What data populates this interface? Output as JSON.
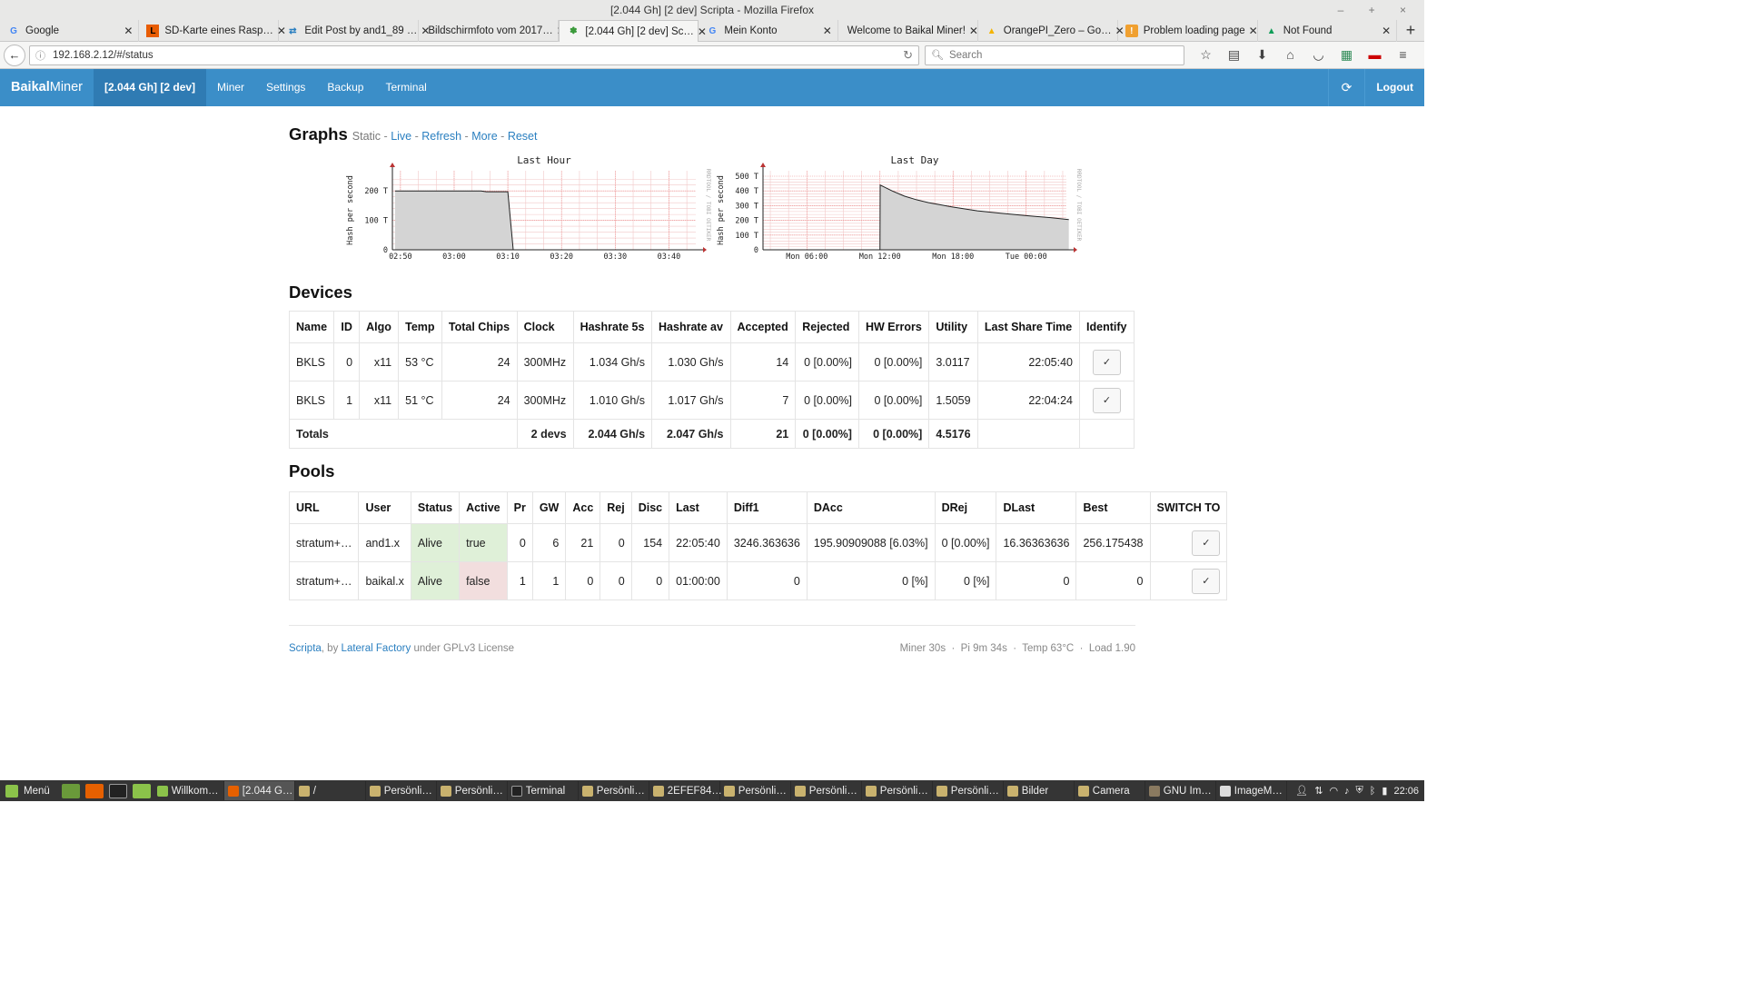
{
  "window": {
    "title": "[2.044 Gh] [2 dev] Scripta - Mozilla Firefox",
    "controls": "– + ×"
  },
  "tabs": [
    {
      "label": "Google",
      "icon": "google-icon",
      "active": false
    },
    {
      "label": "SD-Karte eines Rasp…",
      "icon": "site-l-icon",
      "active": false
    },
    {
      "label": "Edit Post by and1_89 …",
      "icon": "edit-icon",
      "active": false
    },
    {
      "label": "Bildschirmfoto vom 2017…",
      "icon": "",
      "active": false
    },
    {
      "label": "[2.044 Gh] [2 dev] Sc…",
      "icon": "scripta-icon",
      "active": true
    },
    {
      "label": "Mein Konto",
      "icon": "google-icon",
      "active": false
    },
    {
      "label": "Welcome to Baikal Miner!",
      "icon": "",
      "active": false
    },
    {
      "label": "OrangePI_Zero – Go…",
      "icon": "drive-icon",
      "active": false
    },
    {
      "label": "Problem loading page",
      "icon": "warning-icon",
      "active": false
    },
    {
      "label": "Not Found",
      "icon": "drive-icon",
      "active": false
    }
  ],
  "navbar": {
    "url": "192.168.2.12/#/status",
    "search_placeholder": "Search"
  },
  "app": {
    "brand_bold": "Baikal",
    "brand_rest": "Miner",
    "nav": [
      "[2.044 Gh] [2 dev]",
      "Miner",
      "Settings",
      "Backup",
      "Terminal"
    ],
    "logout": "Logout"
  },
  "graphs": {
    "heading": "Graphs",
    "static_label": "Static",
    "links": [
      "Live",
      "Refresh",
      "More",
      "Reset"
    ]
  },
  "chart_data": [
    {
      "type": "area",
      "title": "Last Hour",
      "ylabel": "Hash per second",
      "watermark": "RRDTOOL / TOBI OETIKER",
      "yticks": [
        "0",
        "100 T",
        "200 T"
      ],
      "xticks": [
        "02:50",
        "03:00",
        "03:10",
        "03:20",
        "03:30",
        "03:40"
      ],
      "ylim": [
        0,
        250
      ],
      "x": [
        "02:49",
        "02:50",
        "02:55",
        "03:00",
        "03:05",
        "03:06",
        "03:10",
        "03:11"
      ],
      "values": [
        200,
        200,
        200,
        200,
        200,
        197,
        197,
        0
      ]
    },
    {
      "type": "area",
      "title": "Last Day",
      "ylabel": "Hash per second",
      "watermark": "RRDTOOL / TOBI OETIKER",
      "yticks": [
        "0",
        "100 T",
        "200 T",
        "300 T",
        "400 T",
        "500 T"
      ],
      "xticks": [
        "Mon 06:00",
        "Mon 12:00",
        "Mon 18:00",
        "Tue 00:00"
      ],
      "ylim": [
        0,
        500
      ],
      "x": [
        "Mon 12:00",
        "Mon 12:01",
        "Mon 13:00",
        "Mon 14:00",
        "Mon 15:00",
        "Mon 16:00",
        "Mon 18:00",
        "Mon 20:00",
        "Mon 22:00",
        "Tue 00:00",
        "Tue 02:00",
        "Tue 03:30"
      ],
      "values": [
        0,
        440,
        400,
        365,
        340,
        320,
        290,
        265,
        248,
        232,
        218,
        205
      ]
    }
  ],
  "devices": {
    "heading": "Devices",
    "columns": [
      "Name",
      "ID",
      "Algo",
      "Temp",
      "Total Chips",
      "Clock",
      "Hashrate 5s",
      "Hashrate av",
      "Accepted",
      "Rejected",
      "HW Errors",
      "Utility",
      "Last Share Time",
      "Identify"
    ],
    "rows": [
      [
        "BKLS",
        "0",
        "x11",
        "53 °C",
        "24",
        "300MHz",
        "1.034 Gh/s",
        "1.030 Gh/s",
        "14",
        "0 [0.00%]",
        "0 [0.00%]",
        "3.0117",
        "22:05:40",
        "✓"
      ],
      [
        "BKLS",
        "1",
        "x11",
        "51 °C",
        "24",
        "300MHz",
        "1.010 Gh/s",
        "1.017 Gh/s",
        "7",
        "0 [0.00%]",
        "0 [0.00%]",
        "1.5059",
        "22:04:24",
        "✓"
      ]
    ],
    "totals": [
      "Totals",
      "2 devs",
      "2.044 Gh/s",
      "2.047 Gh/s",
      "21",
      "0 [0.00%]",
      "0 [0.00%]",
      "4.5176"
    ]
  },
  "pools": {
    "heading": "Pools",
    "columns": [
      "URL",
      "User",
      "Status",
      "Active",
      "Pr",
      "GW",
      "Acc",
      "Rej",
      "Disc",
      "Last",
      "Diff1",
      "DAcc",
      "DRej",
      "DLast",
      "Best",
      "SWITCH TO"
    ],
    "rows": [
      [
        "stratum+…",
        "and1.x",
        "Alive",
        "true",
        "0",
        "6",
        "21",
        "0",
        "154",
        "22:05:40",
        "3246.363636",
        "195.90909088 [6.03%]",
        "0 [0.00%]",
        "16.36363636",
        "256.175438",
        "✓"
      ],
      [
        "stratum+…",
        "baikal.x",
        "Alive",
        "false",
        "1",
        "1",
        "0",
        "0",
        "0",
        "01:00:00",
        "0",
        "0 [%]",
        "0 [%]",
        "0",
        "0",
        "✓"
      ]
    ]
  },
  "footer": {
    "scripta": "Scripta",
    "by": ", by",
    "lateral": "Lateral Factory",
    "license": "under GPLv3 License",
    "stats": "Miner 30s  ·  Pi 9m 34s  ·  Temp 63°C  ·  Load 1.90"
  },
  "taskbar": {
    "menu": "Menü",
    "items": [
      "Willkom…",
      "[2.044 G…",
      "/",
      "Persönli…",
      "Persönli…",
      "Terminal",
      "Persönli…",
      "2EFEF84…",
      "Persönli…",
      "Persönli…",
      "Persönli…",
      "Persönli…",
      "Bilder",
      "Camera",
      "GNU Im…",
      "ImageM…"
    ],
    "clock": "22:06"
  }
}
